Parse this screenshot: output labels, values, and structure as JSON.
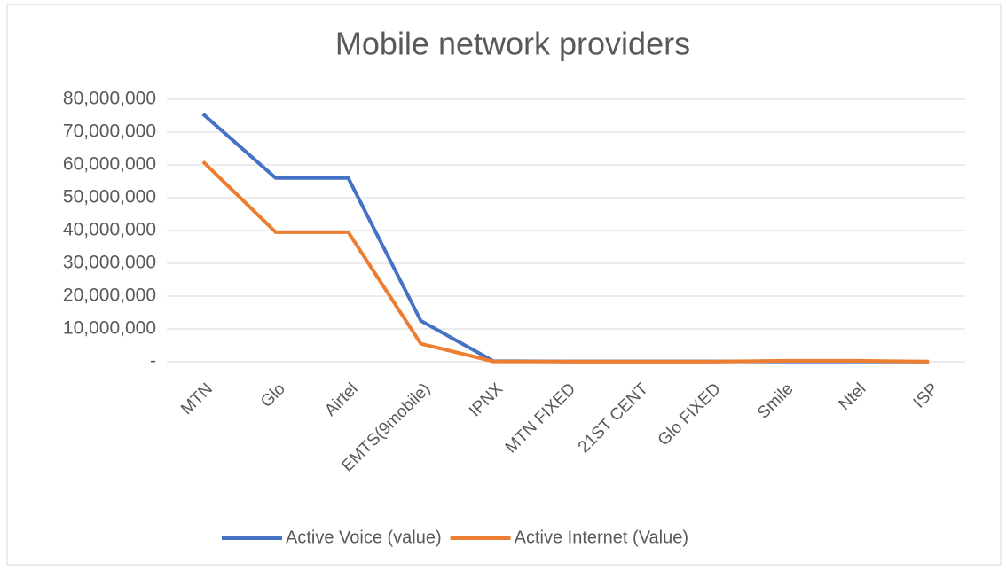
{
  "chart_data": {
    "type": "line",
    "title": "Mobile network providers",
    "categories": [
      "MTN",
      "Glo",
      "Airtel",
      "EMTS(9mobile)",
      "IPNX",
      "MTN FIXED",
      "21ST CENT",
      "Glo FIXED",
      "Smile",
      "Ntel",
      "ISP"
    ],
    "series": [
      {
        "name": "Active Voice (value)",
        "color": "#4472c4",
        "values": [
          75500000,
          56000000,
          56000000,
          12500000,
          200000,
          100000,
          100000,
          100000,
          100000,
          100000,
          50000
        ]
      },
      {
        "name": "Active Internet (Value)",
        "color": "#ed7d31",
        "values": [
          61000000,
          39500000,
          39500000,
          5500000,
          100000,
          50000,
          50000,
          50000,
          300000,
          300000,
          20000
        ]
      }
    ],
    "ylim": [
      0,
      80000000
    ],
    "yticks": [
      {
        "value": 0,
        "label": "-"
      },
      {
        "value": 10000000,
        "label": "10,000,000"
      },
      {
        "value": 20000000,
        "label": "20,000,000"
      },
      {
        "value": 30000000,
        "label": "30,000,000"
      },
      {
        "value": 40000000,
        "label": "40,000,000"
      },
      {
        "value": 50000000,
        "label": "50,000,000"
      },
      {
        "value": 60000000,
        "label": "60,000,000"
      },
      {
        "value": 70000000,
        "label": "70,000,000"
      },
      {
        "value": 80000000,
        "label": "80,000,000"
      }
    ],
    "grid": true,
    "legend": "bottom"
  }
}
